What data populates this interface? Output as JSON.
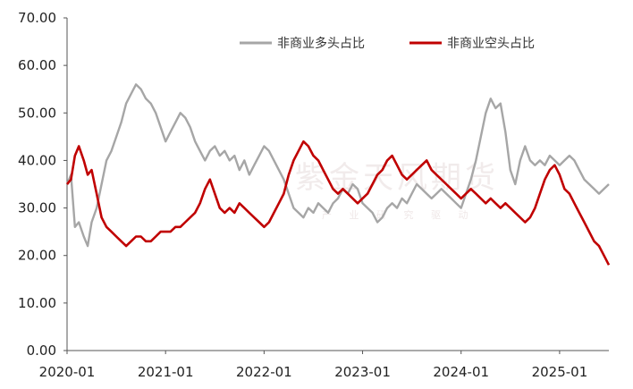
{
  "chart_data": {
    "type": "line",
    "title": "",
    "xlabel": "",
    "ylabel": "",
    "ylim": [
      0,
      70
    ],
    "yticks": [
      "0.00",
      "10.00",
      "20.00",
      "30.00",
      "40.00",
      "50.00",
      "60.00",
      "70.00"
    ],
    "xlim": [
      2020.0,
      2025.5
    ],
    "xticks": [
      {
        "x": 2020.0,
        "label": "2020-01"
      },
      {
        "x": 2021.0,
        "label": "2021-01"
      },
      {
        "x": 2022.0,
        "label": "2022-01"
      },
      {
        "x": 2023.0,
        "label": "2023-01"
      },
      {
        "x": 2024.0,
        "label": "2024-01"
      },
      {
        "x": 2025.0,
        "label": "2025-01"
      }
    ],
    "legend_position": "top-right",
    "series": [
      {
        "name": "非商业多头占比",
        "color": "#a6a6a6",
        "points": [
          [
            2020.0,
            35
          ],
          [
            2020.04,
            37
          ],
          [
            2020.08,
            26
          ],
          [
            2020.12,
            27
          ],
          [
            2020.17,
            24
          ],
          [
            2020.21,
            22
          ],
          [
            2020.25,
            27
          ],
          [
            2020.3,
            30
          ],
          [
            2020.35,
            35
          ],
          [
            2020.4,
            40
          ],
          [
            2020.45,
            42
          ],
          [
            2020.5,
            45
          ],
          [
            2020.55,
            48
          ],
          [
            2020.6,
            52
          ],
          [
            2020.65,
            54
          ],
          [
            2020.7,
            56
          ],
          [
            2020.75,
            55
          ],
          [
            2020.8,
            53
          ],
          [
            2020.85,
            52
          ],
          [
            2020.9,
            50
          ],
          [
            2020.95,
            47
          ],
          [
            2021.0,
            44
          ],
          [
            2021.05,
            46
          ],
          [
            2021.1,
            48
          ],
          [
            2021.15,
            50
          ],
          [
            2021.2,
            49
          ],
          [
            2021.25,
            47
          ],
          [
            2021.3,
            44
          ],
          [
            2021.35,
            42
          ],
          [
            2021.4,
            40
          ],
          [
            2021.45,
            42
          ],
          [
            2021.5,
            43
          ],
          [
            2021.55,
            41
          ],
          [
            2021.6,
            42
          ],
          [
            2021.65,
            40
          ],
          [
            2021.7,
            41
          ],
          [
            2021.75,
            38
          ],
          [
            2021.8,
            40
          ],
          [
            2021.85,
            37
          ],
          [
            2021.9,
            39
          ],
          [
            2021.95,
            41
          ],
          [
            2022.0,
            43
          ],
          [
            2022.05,
            42
          ],
          [
            2022.1,
            40
          ],
          [
            2022.15,
            38
          ],
          [
            2022.2,
            36
          ],
          [
            2022.25,
            33
          ],
          [
            2022.3,
            30
          ],
          [
            2022.35,
            29
          ],
          [
            2022.4,
            28
          ],
          [
            2022.45,
            30
          ],
          [
            2022.5,
            29
          ],
          [
            2022.55,
            31
          ],
          [
            2022.6,
            30
          ],
          [
            2022.65,
            29
          ],
          [
            2022.7,
            31
          ],
          [
            2022.75,
            32
          ],
          [
            2022.8,
            34
          ],
          [
            2022.85,
            33
          ],
          [
            2022.9,
            35
          ],
          [
            2022.95,
            34
          ],
          [
            2023.0,
            31
          ],
          [
            2023.05,
            30
          ],
          [
            2023.1,
            29
          ],
          [
            2023.15,
            27
          ],
          [
            2023.2,
            28
          ],
          [
            2023.25,
            30
          ],
          [
            2023.3,
            31
          ],
          [
            2023.35,
            30
          ],
          [
            2023.4,
            32
          ],
          [
            2023.45,
            31
          ],
          [
            2023.5,
            33
          ],
          [
            2023.55,
            35
          ],
          [
            2023.6,
            34
          ],
          [
            2023.65,
            33
          ],
          [
            2023.7,
            32
          ],
          [
            2023.75,
            33
          ],
          [
            2023.8,
            34
          ],
          [
            2023.85,
            33
          ],
          [
            2023.9,
            32
          ],
          [
            2023.95,
            31
          ],
          [
            2024.0,
            30
          ],
          [
            2024.05,
            33
          ],
          [
            2024.1,
            36
          ],
          [
            2024.15,
            40
          ],
          [
            2024.2,
            45
          ],
          [
            2024.25,
            50
          ],
          [
            2024.3,
            53
          ],
          [
            2024.35,
            51
          ],
          [
            2024.4,
            52
          ],
          [
            2024.45,
            46
          ],
          [
            2024.5,
            38
          ],
          [
            2024.55,
            35
          ],
          [
            2024.6,
            40
          ],
          [
            2024.65,
            43
          ],
          [
            2024.7,
            40
          ],
          [
            2024.75,
            39
          ],
          [
            2024.8,
            40
          ],
          [
            2024.85,
            39
          ],
          [
            2024.9,
            41
          ],
          [
            2024.95,
            40
          ],
          [
            2025.0,
            39
          ],
          [
            2025.05,
            40
          ],
          [
            2025.1,
            41
          ],
          [
            2025.15,
            40
          ],
          [
            2025.2,
            38
          ],
          [
            2025.25,
            36
          ],
          [
            2025.3,
            35
          ],
          [
            2025.35,
            34
          ],
          [
            2025.4,
            33
          ],
          [
            2025.45,
            34
          ],
          [
            2025.5,
            35
          ]
        ]
      },
      {
        "name": "非商业空头占比",
        "color": "#c00000",
        "points": [
          [
            2020.0,
            35
          ],
          [
            2020.04,
            36
          ],
          [
            2020.08,
            41
          ],
          [
            2020.12,
            43
          ],
          [
            2020.17,
            40
          ],
          [
            2020.21,
            37
          ],
          [
            2020.25,
            38
          ],
          [
            2020.3,
            33
          ],
          [
            2020.35,
            28
          ],
          [
            2020.4,
            26
          ],
          [
            2020.45,
            25
          ],
          [
            2020.5,
            24
          ],
          [
            2020.55,
            23
          ],
          [
            2020.6,
            22
          ],
          [
            2020.65,
            23
          ],
          [
            2020.7,
            24
          ],
          [
            2020.75,
            24
          ],
          [
            2020.8,
            23
          ],
          [
            2020.85,
            23
          ],
          [
            2020.9,
            24
          ],
          [
            2020.95,
            25
          ],
          [
            2021.0,
            25
          ],
          [
            2021.05,
            25
          ],
          [
            2021.1,
            26
          ],
          [
            2021.15,
            26
          ],
          [
            2021.2,
            27
          ],
          [
            2021.25,
            28
          ],
          [
            2021.3,
            29
          ],
          [
            2021.35,
            31
          ],
          [
            2021.4,
            34
          ],
          [
            2021.45,
            36
          ],
          [
            2021.5,
            33
          ],
          [
            2021.55,
            30
          ],
          [
            2021.6,
            29
          ],
          [
            2021.65,
            30
          ],
          [
            2021.7,
            29
          ],
          [
            2021.75,
            31
          ],
          [
            2021.8,
            30
          ],
          [
            2021.85,
            29
          ],
          [
            2021.9,
            28
          ],
          [
            2021.95,
            27
          ],
          [
            2022.0,
            26
          ],
          [
            2022.05,
            27
          ],
          [
            2022.1,
            29
          ],
          [
            2022.15,
            31
          ],
          [
            2022.2,
            33
          ],
          [
            2022.25,
            37
          ],
          [
            2022.3,
            40
          ],
          [
            2022.35,
            42
          ],
          [
            2022.4,
            44
          ],
          [
            2022.45,
            43
          ],
          [
            2022.5,
            41
          ],
          [
            2022.55,
            40
          ],
          [
            2022.6,
            38
          ],
          [
            2022.65,
            36
          ],
          [
            2022.7,
            34
          ],
          [
            2022.75,
            33
          ],
          [
            2022.8,
            34
          ],
          [
            2022.85,
            33
          ],
          [
            2022.9,
            32
          ],
          [
            2022.95,
            31
          ],
          [
            2023.0,
            32
          ],
          [
            2023.05,
            33
          ],
          [
            2023.1,
            35
          ],
          [
            2023.15,
            37
          ],
          [
            2023.2,
            38
          ],
          [
            2023.25,
            40
          ],
          [
            2023.3,
            41
          ],
          [
            2023.35,
            39
          ],
          [
            2023.4,
            37
          ],
          [
            2023.45,
            36
          ],
          [
            2023.5,
            37
          ],
          [
            2023.55,
            38
          ],
          [
            2023.6,
            39
          ],
          [
            2023.65,
            40
          ],
          [
            2023.7,
            38
          ],
          [
            2023.75,
            37
          ],
          [
            2023.8,
            36
          ],
          [
            2023.85,
            35
          ],
          [
            2023.9,
            34
          ],
          [
            2023.95,
            33
          ],
          [
            2024.0,
            32
          ],
          [
            2024.05,
            33
          ],
          [
            2024.1,
            34
          ],
          [
            2024.15,
            33
          ],
          [
            2024.2,
            32
          ],
          [
            2024.25,
            31
          ],
          [
            2024.3,
            32
          ],
          [
            2024.35,
            31
          ],
          [
            2024.4,
            30
          ],
          [
            2024.45,
            31
          ],
          [
            2024.5,
            30
          ],
          [
            2024.55,
            29
          ],
          [
            2024.6,
            28
          ],
          [
            2024.65,
            27
          ],
          [
            2024.7,
            28
          ],
          [
            2024.75,
            30
          ],
          [
            2024.8,
            33
          ],
          [
            2024.85,
            36
          ],
          [
            2024.9,
            38
          ],
          [
            2024.95,
            39
          ],
          [
            2025.0,
            37
          ],
          [
            2025.05,
            34
          ],
          [
            2025.1,
            33
          ],
          [
            2025.15,
            31
          ],
          [
            2025.2,
            29
          ],
          [
            2025.25,
            27
          ],
          [
            2025.3,
            25
          ],
          [
            2025.35,
            23
          ],
          [
            2025.4,
            22
          ],
          [
            2025.45,
            20
          ],
          [
            2025.5,
            18
          ]
        ]
      }
    ]
  }
}
